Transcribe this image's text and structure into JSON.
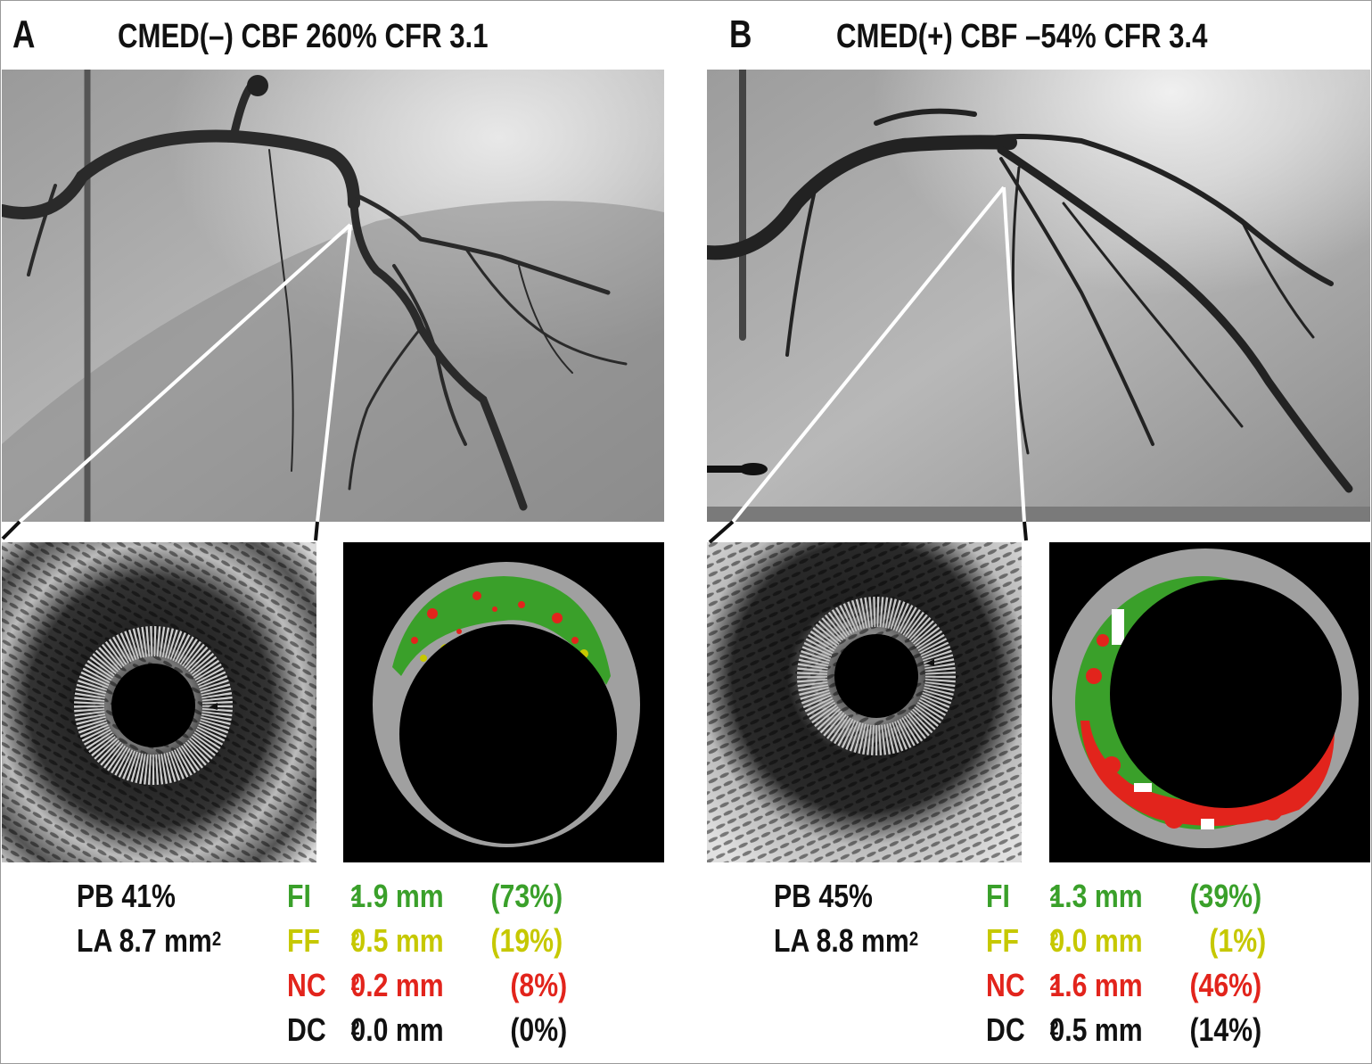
{
  "panels": [
    {
      "letter": "A",
      "title": "CMED(–) CBF 260% CFR 3.1",
      "pb": "PB 41%",
      "la_prefix": "LA 8.7 mm",
      "composition": [
        {
          "label": "FI",
          "value": "1.9 mm",
          "pct": "(73%)",
          "color": "#3aa02a"
        },
        {
          "label": "FF",
          "value": "0.5 mm",
          "pct": "(19%)",
          "color": "#c6c800"
        },
        {
          "label": "NC",
          "value": "0.2 mm",
          "pct": "(8%)",
          "color": "#e2241c"
        },
        {
          "label": "DC",
          "value": "0.0 mm",
          "pct": "(0%)",
          "color": "#111111"
        }
      ]
    },
    {
      "letter": "B",
      "title": "CMED(+) CBF –54% CFR 3.4",
      "pb": "PB 45%",
      "la_prefix": "LA 8.8 mm",
      "composition": [
        {
          "label": "FI",
          "value": "1.3 mm",
          "pct": "(39%)",
          "color": "#3aa02a"
        },
        {
          "label": "FF",
          "value": "0.0 mm",
          "pct": "(1%)",
          "color": "#c6c800"
        },
        {
          "label": "NC",
          "value": "1.6 mm",
          "pct": "(46%)",
          "color": "#e2241c"
        },
        {
          "label": "DC",
          "value": "0.5 mm",
          "pct": "(14%)",
          "color": "#111111"
        }
      ]
    }
  ],
  "superscript": "2",
  "colors": {
    "fibrous": "#3aa02a",
    "fibrofatty": "#c6c800",
    "necrotic_core": "#e2241c",
    "dense_calcium": "#ffffff",
    "vessel_wall": "#a0a0a0"
  }
}
